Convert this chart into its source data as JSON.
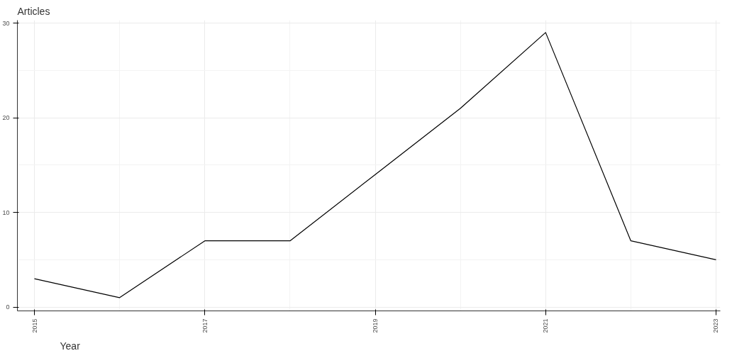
{
  "chart_data": {
    "type": "line",
    "xlabel": "Year",
    "ylabel": "Articles",
    "x": [
      2015,
      2016,
      2017,
      2018,
      2019,
      2020,
      2021,
      2022,
      2023
    ],
    "series": [
      {
        "color": "#000000",
        "values": [
          3,
          1,
          7,
          7,
          14,
          21,
          29,
          7,
          5
        ]
      }
    ],
    "xlim": [
      2014.8,
      2023.05
    ],
    "xticks": [
      2015,
      2017,
      2019,
      2021,
      2023
    ],
    "ylim": [
      -0.4,
      30.3
    ],
    "yticks": [
      0,
      10,
      20,
      30
    ],
    "grid": true
  }
}
